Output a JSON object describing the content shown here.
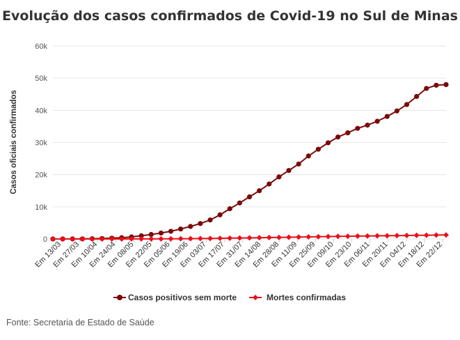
{
  "chart_data": {
    "type": "line",
    "title": "Evolução dos casos confirmados de Covid-19 no Sul de Minas",
    "xlabel": "",
    "ylabel": "Casos oficiais confirmados",
    "ylim": [
      0,
      60000
    ],
    "y_ticks": [
      0,
      10000,
      20000,
      30000,
      40000,
      50000,
      60000
    ],
    "y_tick_labels": [
      "0",
      "10k",
      "20k",
      "30k",
      "40k",
      "50k",
      "60k"
    ],
    "grid": true,
    "legend_position": "bottom",
    "x_tick_labels": [
      "Em 13/03",
      "Em 27/03",
      "Em 10/04",
      "Em 24/04",
      "Em 08/05",
      "Em 22/05",
      "Em 05/06",
      "Em 19/06",
      "Em 03/07",
      "Em 17/07",
      "Em 31/07",
      "Em 14/08",
      "Em 28/08",
      "Em 11/09",
      "Em 25/09",
      "Em 09/10",
      "Em 23/10",
      "Em 06/11",
      "Em 20/11",
      "Em 04/12",
      "Em 18/12",
      "Em 22/12"
    ],
    "series": [
      {
        "name": "Casos positivos sem morte",
        "color": "#7a0a0a",
        "values": [
          5,
          10,
          20,
          40,
          80,
          150,
          250,
          400,
          650,
          1000,
          1400,
          1850,
          2400,
          3100,
          3900,
          4800,
          5900,
          7500,
          9400,
          11200,
          13100,
          15000,
          17100,
          19300,
          21300,
          23300,
          25800,
          27900,
          29900,
          31700,
          33000,
          34400,
          35400,
          36600,
          38100,
          39800,
          41800,
          44300,
          46800,
          47800,
          48000
        ]
      },
      {
        "name": "Mortes confirmadas",
        "color": "#e8101a",
        "values": [
          0,
          0,
          0,
          1,
          2,
          4,
          7,
          10,
          15,
          22,
          30,
          40,
          55,
          75,
          100,
          130,
          165,
          205,
          250,
          300,
          350,
          400,
          450,
          500,
          550,
          600,
          650,
          700,
          750,
          800,
          850,
          890,
          930,
          970,
          1010,
          1050,
          1090,
          1130,
          1170,
          1210,
          1250
        ]
      }
    ]
  },
  "source": "Fonte: Secretaria de Estado de Saúde"
}
